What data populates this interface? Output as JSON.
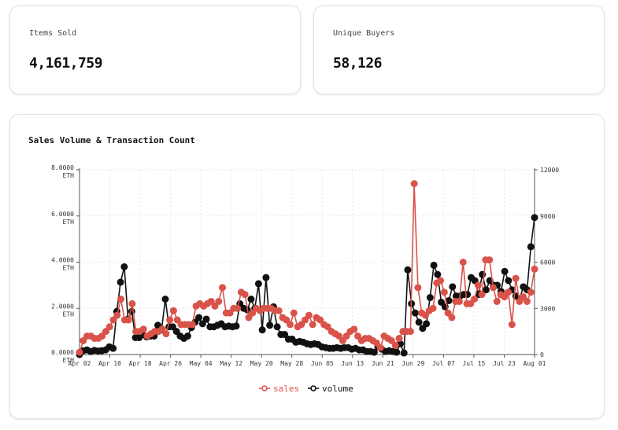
{
  "stats": [
    {
      "label": "Items Sold",
      "value": "4,161,759"
    },
    {
      "label": "Unique Buyers",
      "value": "58,126"
    }
  ],
  "colors": {
    "sales": "#d9534a",
    "volume": "#111111"
  },
  "chart_data": {
    "type": "line",
    "title": "Sales Volume & Transaction Count",
    "x_labels": [
      "Apr 02",
      "Apr 10",
      "Apr 18",
      "Apr 26",
      "May 04",
      "May 12",
      "May 20",
      "May 28",
      "Jun 05",
      "Jun 13",
      "Jun 21",
      "Jun 29",
      "Jul 07",
      "Jul 15",
      "Jul 23",
      "Aug 01"
    ],
    "y_left": {
      "ticks": [
        "0.0000",
        "2.0000",
        "4.0000",
        "6.0000",
        "8.0000"
      ],
      "unit": "ETH",
      "range": [
        0,
        8
      ]
    },
    "y_right": {
      "ticks": [
        "0",
        "3000",
        "6000",
        "9000",
        "12000"
      ],
      "range": [
        0,
        12000
      ]
    },
    "legend": [
      "sales",
      "volume"
    ],
    "series": [
      {
        "name": "sales",
        "axis": "left",
        "values": [
          0.1,
          0.6,
          0.8,
          0.8,
          0.7,
          0.7,
          0.8,
          1.0,
          1.2,
          1.5,
          1.7,
          2.4,
          1.5,
          1.5,
          2.2,
          1.0,
          1.0,
          1.1,
          0.8,
          0.9,
          1.0,
          1.0,
          1.1,
          0.9,
          1.5,
          1.9,
          1.5,
          1.3,
          1.3,
          1.3,
          1.3,
          2.1,
          2.2,
          2.1,
          2.2,
          2.3,
          2.1,
          2.3,
          2.9,
          1.8,
          1.8,
          2.0,
          2.0,
          2.7,
          2.6,
          1.6,
          1.8,
          2.0,
          1.9,
          2.0,
          2.0,
          2.0,
          1.9,
          1.9,
          1.6,
          1.5,
          1.3,
          1.8,
          1.2,
          1.3,
          1.5,
          1.7,
          1.3,
          1.6,
          1.5,
          1.3,
          1.2,
          1.0,
          0.9,
          0.8,
          0.6,
          0.8,
          1.0,
          1.1,
          0.8,
          0.6,
          0.7,
          0.7,
          0.6,
          0.5,
          0.3,
          0.8,
          0.7,
          0.6,
          0.4,
          0.7,
          1.0,
          1.0,
          1.0,
          7.4,
          2.9,
          1.8,
          1.7,
          1.9,
          2.0,
          3.1,
          3.2,
          2.7,
          1.8,
          1.6,
          2.3,
          2.3,
          4.0,
          2.2,
          2.2,
          2.4,
          3.0,
          2.6,
          4.1,
          4.1,
          2.9,
          2.3,
          2.6,
          2.5,
          2.7,
          1.3,
          3.3,
          2.3,
          2.5,
          2.3,
          2.7,
          3.7
        ]
      },
      {
        "name": "volume",
        "axis": "right",
        "values": [
          1,
          250,
          300,
          200,
          270,
          230,
          250,
          300,
          500,
          400,
          2800,
          4700,
          5700,
          2300,
          2800,
          1100,
          1100,
          1300,
          1150,
          1200,
          1200,
          1900,
          1600,
          3600,
          1800,
          1800,
          1500,
          1200,
          1050,
          1200,
          1750,
          2100,
          2400,
          2000,
          2300,
          1800,
          1800,
          1900,
          2000,
          1800,
          1850,
          1800,
          1850,
          3300,
          3000,
          2900,
          3600,
          3000,
          4600,
          1600,
          5000,
          1900,
          3100,
          1800,
          1300,
          1300,
          1000,
          1000,
          800,
          850,
          800,
          700,
          650,
          700,
          650,
          500,
          450,
          400,
          400,
          450,
          400,
          450,
          450,
          350,
          400,
          300,
          300,
          200,
          200,
          150,
          500,
          350,
          200,
          250,
          200,
          150,
          700,
          100,
          5500,
          3300,
          2700,
          2100,
          1700,
          2000,
          3700,
          5800,
          5200,
          3400,
          3100,
          3500,
          4400,
          3800,
          3800,
          3900,
          3900,
          5000,
          4800,
          3900,
          5200,
          4200,
          4800,
          4500,
          4500,
          4100,
          5400,
          4800,
          4200,
          3800,
          3600,
          4400,
          4200,
          7000,
          8900
        ]
      }
    ]
  }
}
